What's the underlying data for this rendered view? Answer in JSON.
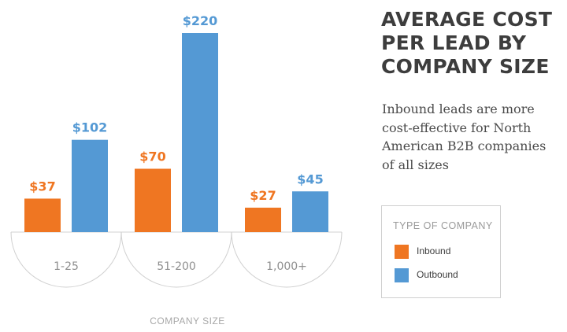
{
  "colors": {
    "inbound": "#ef7622",
    "outbound": "#5499d4"
  },
  "title_lines": [
    "AVERAGE COST",
    "PER LEAD BY",
    "COMPANY SIZE"
  ],
  "subtitle_lines": [
    "Inbound leads are more",
    "cost-effective for North",
    "American B2B companies",
    "of all sizes"
  ],
  "legend": {
    "title": "TYPE OF COMPANY",
    "items": [
      {
        "label": "Inbound",
        "color": "#ef7622"
      },
      {
        "label": "Outbound",
        "color": "#5499d4"
      }
    ]
  },
  "chart_data": {
    "type": "bar",
    "title": "AVERAGE COST PER LEAD BY COMPANY SIZE",
    "xlabel": "COMPANY SIZE",
    "ylabel": "",
    "categories": [
      "1-25",
      "51-200",
      "1,000+"
    ],
    "series": [
      {
        "name": "Inbound",
        "values": [
          37,
          70,
          27
        ],
        "labels": [
          "$37",
          "$70",
          "$27"
        ]
      },
      {
        "name": "Outbound",
        "values": [
          102,
          220,
          45
        ],
        "labels": [
          "$102",
          "$220",
          "$45"
        ]
      }
    ],
    "ylim": [
      0,
      220
    ],
    "grid": false,
    "legend_position": "right"
  }
}
